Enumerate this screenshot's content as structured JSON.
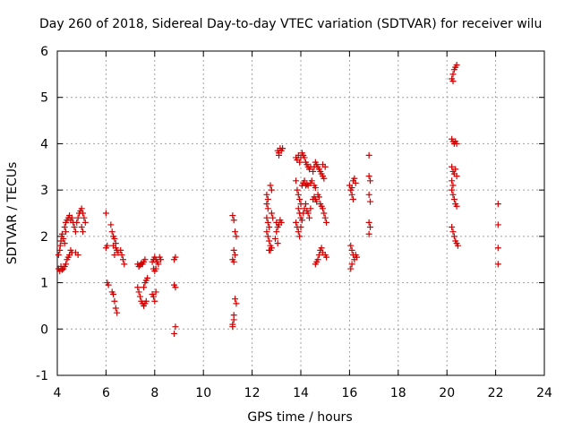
{
  "chart_data": {
    "type": "scatter",
    "title": "Day 260 of 2018, Sidereal Day-to-day VTEC variation (SDTVAR) for receiver wilu",
    "xlabel": "GPS time / hours",
    "ylabel": "SDTVAR / TECUs",
    "xlim": [
      4,
      24
    ],
    "ylim": [
      -1,
      6
    ],
    "xticks": [
      "4",
      "6",
      "8",
      "10",
      "12",
      "14",
      "16",
      "18",
      "20",
      "22",
      "24"
    ],
    "yticks": [
      "-1",
      "0",
      "1",
      "2",
      "3",
      "4",
      "5",
      "6"
    ],
    "grid": true,
    "marker": "plus",
    "series": [
      {
        "name": "SDTVAR",
        "color": "#d00000",
        "points": [
          [
            4.05,
            1.3
          ],
          [
            4.1,
            1.25
          ],
          [
            4.15,
            1.35
          ],
          [
            4.2,
            1.28
          ],
          [
            4.25,
            1.3
          ],
          [
            4.3,
            1.35
          ],
          [
            4.35,
            1.4
          ],
          [
            4.4,
            1.5
          ],
          [
            4.45,
            1.55
          ],
          [
            4.5,
            1.6
          ],
          [
            4.55,
            1.7
          ],
          [
            4.6,
            1.65
          ],
          [
            4.05,
            1.6
          ],
          [
            4.1,
            1.7
          ],
          [
            4.12,
            1.8
          ],
          [
            4.15,
            1.9
          ],
          [
            4.18,
            2.0
          ],
          [
            4.2,
            2.05
          ],
          [
            4.25,
            1.95
          ],
          [
            4.3,
            1.85
          ],
          [
            4.35,
            2.1
          ],
          [
            4.3,
            2.2
          ],
          [
            4.35,
            2.3
          ],
          [
            4.4,
            2.35
          ],
          [
            4.45,
            2.4
          ],
          [
            4.5,
            2.45
          ],
          [
            4.55,
            2.35
          ],
          [
            4.6,
            2.4
          ],
          [
            4.65,
            2.3
          ],
          [
            4.7,
            2.2
          ],
          [
            4.75,
            2.1
          ],
          [
            4.8,
            2.3
          ],
          [
            4.85,
            2.4
          ],
          [
            4.9,
            2.5
          ],
          [
            4.95,
            2.55
          ],
          [
            5.0,
            2.6
          ],
          [
            5.05,
            2.5
          ],
          [
            5.1,
            2.4
          ],
          [
            5.15,
            2.3
          ],
          [
            5.0,
            2.2
          ],
          [
            5.05,
            2.1
          ],
          [
            4.75,
            1.65
          ],
          [
            4.85,
            1.6
          ],
          [
            6.0,
            2.5
          ],
          [
            6.05,
            1.8
          ],
          [
            6.0,
            1.75
          ],
          [
            6.05,
            1.0
          ],
          [
            6.1,
            0.95
          ],
          [
            6.2,
            2.25
          ],
          [
            6.25,
            2.1
          ],
          [
            6.3,
            2.0
          ],
          [
            6.35,
            1.95
          ],
          [
            6.4,
            1.85
          ],
          [
            6.3,
            1.8
          ],
          [
            6.4,
            1.75
          ],
          [
            6.45,
            1.7
          ],
          [
            6.35,
            1.6
          ],
          [
            6.5,
            1.65
          ],
          [
            6.25,
            0.8
          ],
          [
            6.3,
            0.75
          ],
          [
            6.35,
            0.6
          ],
          [
            6.4,
            0.45
          ],
          [
            6.45,
            0.35
          ],
          [
            6.6,
            1.7
          ],
          [
            6.65,
            1.6
          ],
          [
            6.7,
            1.5
          ],
          [
            6.75,
            1.4
          ],
          [
            7.3,
            1.4
          ],
          [
            7.35,
            1.35
          ],
          [
            7.4,
            1.38
          ],
          [
            7.45,
            1.42
          ],
          [
            7.5,
            1.4
          ],
          [
            7.55,
            1.45
          ],
          [
            7.6,
            1.5
          ],
          [
            7.3,
            0.9
          ],
          [
            7.35,
            0.8
          ],
          [
            7.4,
            0.7
          ],
          [
            7.45,
            0.6
          ],
          [
            7.5,
            0.55
          ],
          [
            7.55,
            0.5
          ],
          [
            7.6,
            0.55
          ],
          [
            7.65,
            0.6
          ],
          [
            7.55,
            0.9
          ],
          [
            7.6,
            1.0
          ],
          [
            7.65,
            1.05
          ],
          [
            7.7,
            1.1
          ],
          [
            7.9,
            1.45
          ],
          [
            7.95,
            1.5
          ],
          [
            8.0,
            1.55
          ],
          [
            8.05,
            1.5
          ],
          [
            8.1,
            1.45
          ],
          [
            8.15,
            1.4
          ],
          [
            7.95,
            1.3
          ],
          [
            8.0,
            1.25
          ],
          [
            8.05,
            1.3
          ],
          [
            8.2,
            1.55
          ],
          [
            8.25,
            1.5
          ],
          [
            7.9,
            0.75
          ],
          [
            7.95,
            0.7
          ],
          [
            8.0,
            0.6
          ],
          [
            8.05,
            0.8
          ],
          [
            8.8,
            1.5
          ],
          [
            8.85,
            1.55
          ],
          [
            8.8,
            0.95
          ],
          [
            8.85,
            0.9
          ],
          [
            8.85,
            0.05
          ],
          [
            8.8,
            -0.1
          ],
          [
            11.2,
            2.45
          ],
          [
            11.25,
            2.35
          ],
          [
            11.3,
            2.1
          ],
          [
            11.35,
            2.0
          ],
          [
            11.25,
            1.7
          ],
          [
            11.3,
            1.6
          ],
          [
            11.2,
            1.5
          ],
          [
            11.25,
            1.45
          ],
          [
            11.3,
            0.65
          ],
          [
            11.35,
            0.55
          ],
          [
            11.25,
            0.3
          ],
          [
            11.2,
            0.1
          ],
          [
            11.25,
            0.2
          ],
          [
            11.2,
            0.05
          ],
          [
            12.6,
            2.9
          ],
          [
            12.65,
            2.8
          ],
          [
            12.6,
            2.7
          ],
          [
            12.65,
            2.6
          ],
          [
            12.6,
            2.4
          ],
          [
            12.65,
            2.3
          ],
          [
            12.7,
            2.2
          ],
          [
            12.6,
            2.1
          ],
          [
            12.65,
            2.0
          ],
          [
            12.7,
            1.9
          ],
          [
            12.75,
            1.8
          ],
          [
            12.8,
            1.75
          ],
          [
            12.75,
            1.7
          ],
          [
            12.7,
            1.7
          ],
          [
            12.75,
            3.1
          ],
          [
            12.8,
            3.0
          ],
          [
            12.8,
            2.5
          ],
          [
            12.85,
            2.4
          ],
          [
            13.0,
            2.3
          ],
          [
            13.05,
            2.2
          ],
          [
            13.1,
            2.25
          ],
          [
            13.15,
            2.35
          ],
          [
            13.2,
            2.3
          ],
          [
            13.0,
            2.1
          ],
          [
            12.95,
            1.95
          ],
          [
            13.05,
            1.85
          ],
          [
            13.05,
            3.85
          ],
          [
            13.1,
            3.8
          ],
          [
            13.15,
            3.9
          ],
          [
            13.2,
            3.85
          ],
          [
            13.25,
            3.9
          ],
          [
            13.1,
            3.75
          ],
          [
            13.8,
            3.7
          ],
          [
            13.85,
            3.65
          ],
          [
            13.9,
            3.75
          ],
          [
            13.95,
            3.6
          ],
          [
            14.0,
            3.7
          ],
          [
            14.05,
            3.8
          ],
          [
            14.1,
            3.75
          ],
          [
            14.15,
            3.7
          ],
          [
            14.2,
            3.6
          ],
          [
            14.25,
            3.55
          ],
          [
            14.3,
            3.5
          ],
          [
            14.35,
            3.45
          ],
          [
            14.4,
            3.5
          ],
          [
            13.8,
            3.2
          ],
          [
            13.85,
            3.0
          ],
          [
            13.9,
            2.9
          ],
          [
            13.95,
            2.8
          ],
          [
            14.0,
            2.7
          ],
          [
            14.05,
            3.1
          ],
          [
            14.1,
            3.15
          ],
          [
            14.15,
            3.2
          ],
          [
            14.2,
            3.1
          ],
          [
            14.25,
            3.12
          ],
          [
            14.3,
            3.1
          ],
          [
            14.4,
            3.15
          ],
          [
            14.45,
            3.2
          ],
          [
            13.9,
            2.6
          ],
          [
            13.95,
            2.5
          ],
          [
            14.0,
            2.4
          ],
          [
            14.05,
            2.35
          ],
          [
            14.1,
            2.5
          ],
          [
            14.15,
            2.6
          ],
          [
            14.2,
            2.7
          ],
          [
            14.25,
            2.55
          ],
          [
            14.3,
            2.5
          ],
          [
            14.35,
            2.4
          ],
          [
            14.4,
            2.6
          ],
          [
            13.8,
            2.3
          ],
          [
            13.85,
            2.2
          ],
          [
            13.9,
            2.1
          ],
          [
            13.95,
            2.0
          ],
          [
            14.0,
            2.2
          ],
          [
            14.5,
            3.4
          ],
          [
            14.55,
            3.5
          ],
          [
            14.6,
            3.6
          ],
          [
            14.65,
            3.55
          ],
          [
            14.7,
            3.5
          ],
          [
            14.75,
            3.45
          ],
          [
            14.8,
            3.4
          ],
          [
            14.85,
            3.35
          ],
          [
            14.9,
            3.3
          ],
          [
            14.95,
            3.25
          ],
          [
            15.0,
            3.5
          ],
          [
            14.9,
            3.55
          ],
          [
            14.5,
            2.8
          ],
          [
            14.55,
            2.85
          ],
          [
            14.6,
            2.8
          ],
          [
            14.65,
            2.75
          ],
          [
            14.7,
            2.9
          ],
          [
            14.75,
            2.85
          ],
          [
            14.8,
            2.7
          ],
          [
            14.85,
            2.65
          ],
          [
            14.9,
            2.6
          ],
          [
            14.95,
            2.5
          ],
          [
            15.0,
            2.4
          ],
          [
            15.05,
            2.3
          ],
          [
            14.55,
            3.1
          ],
          [
            14.6,
            3.05
          ],
          [
            14.6,
            1.4
          ],
          [
            14.65,
            1.45
          ],
          [
            14.7,
            1.5
          ],
          [
            14.75,
            1.6
          ],
          [
            14.8,
            1.7
          ],
          [
            14.85,
            1.75
          ],
          [
            14.9,
            1.65
          ],
          [
            15.0,
            1.6
          ],
          [
            15.05,
            1.55
          ],
          [
            16.0,
            3.1
          ],
          [
            16.05,
            3.0
          ],
          [
            16.1,
            3.05
          ],
          [
            16.15,
            3.2
          ],
          [
            16.2,
            3.25
          ],
          [
            16.25,
            3.15
          ],
          [
            16.1,
            2.9
          ],
          [
            16.15,
            2.8
          ],
          [
            16.05,
            1.8
          ],
          [
            16.1,
            1.7
          ],
          [
            16.15,
            1.6
          ],
          [
            16.2,
            1.5
          ],
          [
            16.25,
            1.6
          ],
          [
            16.3,
            1.55
          ],
          [
            16.1,
            1.4
          ],
          [
            16.05,
            1.3
          ],
          [
            16.8,
            3.75
          ],
          [
            16.8,
            3.3
          ],
          [
            16.85,
            3.2
          ],
          [
            16.8,
            2.9
          ],
          [
            16.85,
            2.75
          ],
          [
            16.8,
            2.3
          ],
          [
            16.85,
            2.2
          ],
          [
            16.8,
            2.05
          ],
          [
            20.2,
            5.4
          ],
          [
            20.25,
            5.5
          ],
          [
            20.3,
            5.6
          ],
          [
            20.35,
            5.65
          ],
          [
            20.4,
            5.7
          ],
          [
            20.25,
            5.35
          ],
          [
            20.2,
            4.1
          ],
          [
            20.25,
            4.05
          ],
          [
            20.3,
            4.0
          ],
          [
            20.35,
            4.05
          ],
          [
            20.4,
            4.0
          ],
          [
            20.2,
            3.5
          ],
          [
            20.25,
            3.4
          ],
          [
            20.3,
            3.35
          ],
          [
            20.35,
            3.45
          ],
          [
            20.4,
            3.3
          ],
          [
            20.2,
            3.2
          ],
          [
            20.25,
            3.1
          ],
          [
            20.2,
            3.0
          ],
          [
            20.25,
            2.9
          ],
          [
            20.3,
            2.8
          ],
          [
            20.35,
            2.7
          ],
          [
            20.4,
            2.65
          ],
          [
            20.2,
            2.2
          ],
          [
            20.25,
            2.1
          ],
          [
            20.3,
            2.0
          ],
          [
            20.35,
            1.9
          ],
          [
            20.4,
            1.85
          ],
          [
            20.45,
            1.8
          ],
          [
            22.1,
            2.7
          ],
          [
            22.1,
            2.25
          ],
          [
            22.1,
            1.75
          ],
          [
            22.1,
            1.4
          ]
        ]
      }
    ]
  }
}
